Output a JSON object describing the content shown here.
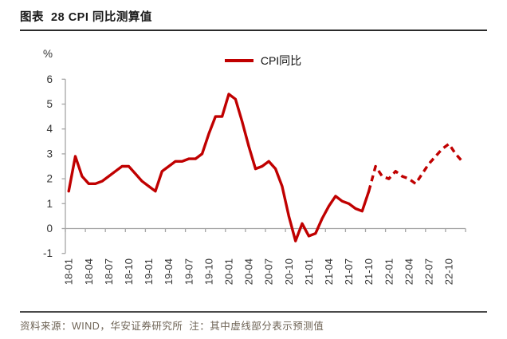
{
  "page": {
    "title": "图表  28 CPI 同比测算值",
    "source_note": "资料来源：WIND，华安证券研究所  注：其中虚线部分表示预测值"
  },
  "colors": {
    "line_red": "#C00000",
    "axis_gray": "#A6A6A6",
    "tick_text": "#333333",
    "title_text": "#1a1a1a",
    "footer_text": "#6E6355"
  },
  "chart_data": {
    "type": "line",
    "title": "CPI 同比测算值",
    "unit_label": "%",
    "ylim": [
      -1,
      6
    ],
    "yticks": [
      -1,
      0,
      1,
      2,
      3,
      4,
      5,
      6
    ],
    "grid": false,
    "legend_position": "top-center",
    "xtick_labels": [
      "18-01",
      "18-04",
      "18-07",
      "18-10",
      "19-01",
      "19-04",
      "19-07",
      "19-10",
      "20-01",
      "20-04",
      "20-07",
      "20-10",
      "21-01",
      "21-04",
      "21-07",
      "21-10",
      "22-01",
      "22-04",
      "22-07",
      "22-10"
    ],
    "months": [
      "18-01",
      "18-02",
      "18-03",
      "18-04",
      "18-05",
      "18-06",
      "18-07",
      "18-08",
      "18-09",
      "18-10",
      "18-11",
      "18-12",
      "19-01",
      "19-02",
      "19-03",
      "19-04",
      "19-05",
      "19-06",
      "19-07",
      "19-08",
      "19-09",
      "19-10",
      "19-11",
      "19-12",
      "20-01",
      "20-02",
      "20-03",
      "20-04",
      "20-05",
      "20-06",
      "20-07",
      "20-08",
      "20-09",
      "20-10",
      "20-11",
      "20-12",
      "21-01",
      "21-02",
      "21-03",
      "21-04",
      "21-05",
      "21-06",
      "21-07",
      "21-08",
      "21-09",
      "21-10",
      "21-11",
      "21-12",
      "22-01",
      "22-02",
      "22-03",
      "22-04",
      "22-05",
      "22-06",
      "22-07",
      "22-08",
      "22-09",
      "22-10",
      "22-11",
      "22-12"
    ],
    "series": [
      {
        "name": "CPI同比",
        "color": "#C00000",
        "values": [
          1.5,
          2.9,
          2.1,
          1.8,
          1.8,
          1.9,
          2.1,
          2.3,
          2.5,
          2.5,
          2.2,
          1.9,
          1.7,
          1.5,
          2.3,
          2.5,
          2.7,
          2.7,
          2.8,
          2.8,
          3.0,
          3.8,
          4.5,
          4.5,
          5.4,
          5.2,
          4.3,
          3.3,
          2.4,
          2.5,
          2.7,
          2.4,
          1.7,
          0.5,
          -0.5,
          0.2,
          -0.3,
          -0.2,
          0.4,
          0.9,
          1.3,
          1.1,
          1.0,
          0.8,
          0.7,
          1.5,
          2.5,
          2.1,
          2.0,
          2.3,
          2.1,
          2.0,
          1.8,
          2.2,
          2.6,
          2.9,
          3.2,
          3.4,
          3.0,
          2.7
        ],
        "forecast_start_index": 46,
        "actual_style": "solid",
        "forecast_style": "dashed"
      }
    ]
  }
}
